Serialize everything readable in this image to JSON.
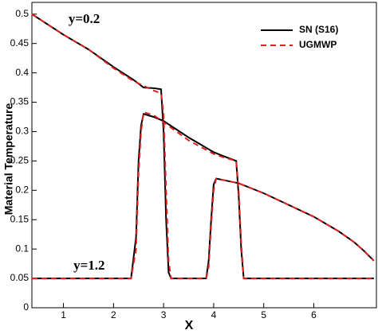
{
  "chart_data": {
    "type": "line",
    "xlabel": "X",
    "ylabel": "Material Temperature",
    "xlim": [
      0.37,
      7.25
    ],
    "ylim": [
      0,
      0.52
    ],
    "xticks": [
      1,
      2,
      3,
      4,
      5,
      6
    ],
    "yticks": [
      0,
      0.05,
      0.1,
      0.15,
      0.2,
      0.25,
      0.3,
      0.35,
      0.4,
      0.45,
      0.5
    ],
    "annotations": [
      {
        "text": "y=0.2",
        "x": 1.1,
        "y": 0.49
      },
      {
        "text": "y=1.2",
        "x": 1.2,
        "y": 0.07
      }
    ],
    "legend": "upper right",
    "series": [
      {
        "name": "SN (S16)",
        "color": "#000000",
        "dash": false,
        "curves": [
          {
            "x": [
              0.37,
              1,
              1.5,
              2,
              2.4,
              2.6,
              2.8,
              2.95,
              3.0,
              3.05,
              3.1,
              3.15,
              3.5,
              3.85,
              3.9,
              3.95,
              4.0,
              4.05,
              4.5,
              5,
              5.5,
              6,
              6.5,
              6.8,
              7.0,
              7.2
            ],
            "y": [
              0.5,
              0.465,
              0.44,
              0.41,
              0.388,
              0.375,
              0.374,
              0.372,
              0.3,
              0.15,
              0.06,
              0.05,
              0.05,
              0.05,
              0.08,
              0.15,
              0.21,
              0.22,
              0.212,
              0.195,
              0.175,
              0.155,
              0.13,
              0.112,
              0.097,
              0.08
            ]
          },
          {
            "x": [
              0.37,
              1,
              2,
              2.35,
              2.45,
              2.5,
              2.55,
              2.6,
              2.8,
              3,
              3.5,
              4,
              4.2,
              4.45,
              4.5,
              4.55,
              4.6,
              5,
              6,
              7.2
            ],
            "y": [
              0.05,
              0.05,
              0.05,
              0.05,
              0.12,
              0.25,
              0.31,
              0.33,
              0.325,
              0.318,
              0.29,
              0.265,
              0.258,
              0.25,
              0.19,
              0.1,
              0.05,
              0.05,
              0.05,
              0.05
            ]
          }
        ]
      },
      {
        "name": "UGMWP",
        "color": "#e0201c",
        "dash": true,
        "curves": [
          {
            "x": [
              0.37,
              1,
              1.5,
              2,
              2.4,
              2.6,
              2.8,
              2.95,
              3.0,
              3.05,
              3.1,
              3.15,
              3.5,
              3.85,
              3.9,
              3.95,
              4.0,
              4.05,
              4.5,
              5,
              5.5,
              6,
              6.5,
              6.8,
              7.0,
              7.2
            ],
            "y": [
              0.5,
              0.465,
              0.44,
              0.408,
              0.386,
              0.378,
              0.37,
              0.365,
              0.33,
              0.2,
              0.08,
              0.05,
              0.05,
              0.05,
              0.07,
              0.14,
              0.2,
              0.22,
              0.212,
              0.195,
              0.175,
              0.155,
              0.13,
              0.112,
              0.097,
              0.08
            ]
          },
          {
            "x": [
              0.37,
              1,
              2,
              2.35,
              2.45,
              2.5,
              2.55,
              2.6,
              2.8,
              3,
              3.5,
              4,
              4.2,
              4.45,
              4.5,
              4.55,
              4.6,
              5,
              6,
              7.2
            ],
            "y": [
              0.05,
              0.05,
              0.05,
              0.05,
              0.1,
              0.23,
              0.3,
              0.333,
              0.328,
              0.316,
              0.285,
              0.262,
              0.256,
              0.25,
              0.2,
              0.11,
              0.05,
              0.05,
              0.05,
              0.05
            ]
          }
        ]
      }
    ]
  }
}
